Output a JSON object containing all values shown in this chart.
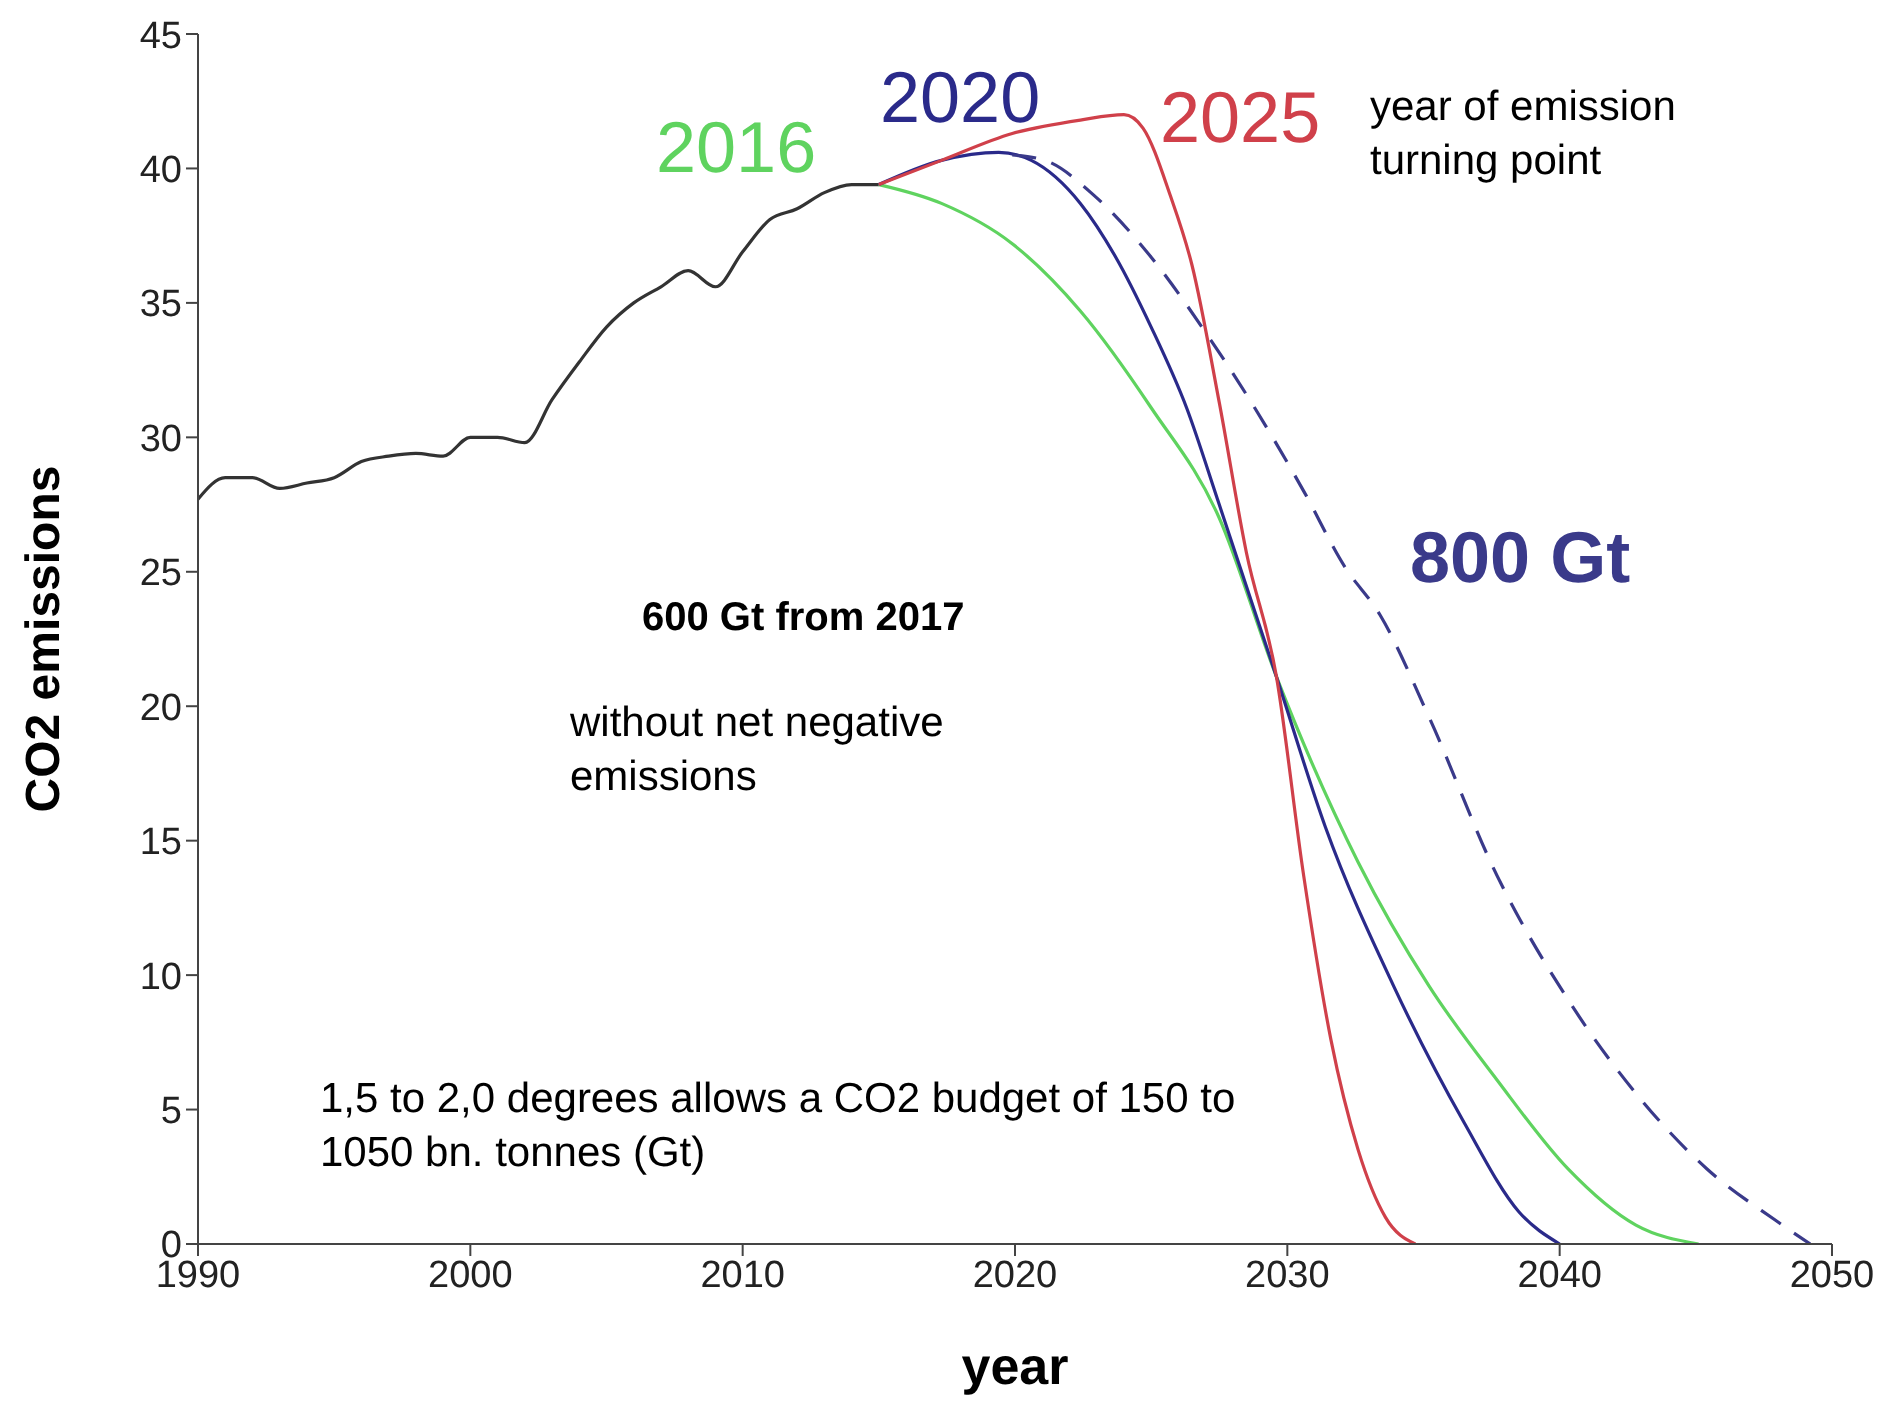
{
  "chart_data": {
    "type": "line",
    "xlabel": "year",
    "ylabel": "CO2 emissions",
    "xlim": [
      1990,
      2050
    ],
    "xticks": [
      1990,
      2000,
      2010,
      2020,
      2030,
      2040,
      2050
    ],
    "ylim": [
      0,
      45
    ],
    "yticks": [
      0,
      5,
      10,
      15,
      20,
      25,
      30,
      35,
      40,
      45
    ],
    "grid": false,
    "legend": false,
    "marker": "none",
    "series": [
      {
        "color": "#333333",
        "line_style": "solid",
        "x": [
          1990,
          1991,
          1992,
          1993,
          1994,
          1995,
          1996,
          1997,
          1998,
          1999,
          2000,
          2001,
          2002,
          2003,
          2004,
          2005,
          2006,
          2007,
          2008,
          2009,
          2010,
          2011,
          2012,
          2013,
          2014,
          2015
        ],
        "values": [
          27.7,
          28.5,
          28.5,
          28.1,
          28.3,
          28.5,
          29.1,
          29.3,
          29.4,
          29.3,
          30.0,
          30.0,
          29.8,
          31.4,
          32.8,
          34.1,
          35.0,
          35.6,
          36.2,
          35.6,
          36.9,
          38.1,
          38.5,
          39.1,
          39.4,
          39.4
        ]
      },
      {
        "name": "2016",
        "color": "#5fd35f",
        "line_style": "solid",
        "x": [
          2015,
          2017.3,
          2019.9,
          2022.4,
          2025,
          2027.5,
          2029.6,
          2032.6,
          2035.2,
          2037.7,
          2040.3,
          2042.8,
          2045.1
        ],
        "values": [
          39.4,
          38.7,
          37.2,
          34.7,
          31.1,
          27.0,
          21.1,
          14.2,
          9.6,
          6.1,
          2.8,
          0.7,
          0
        ]
      },
      {
        "name": "2020",
        "color": "#2a2a8a",
        "line_style": "solid",
        "x": [
          2015,
          2017.3,
          2019.4,
          2020.6,
          2022.4,
          2023.7,
          2025,
          2026.3,
          2027.5,
          2029.6,
          2031.4,
          2033.9,
          2036.5,
          2038.5,
          2040
        ],
        "values": [
          39.4,
          40.3,
          40.6,
          40.3,
          38.7,
          36.7,
          34.1,
          31.1,
          27.5,
          21.1,
          15.5,
          9.6,
          4.5,
          1.2,
          0
        ]
      },
      {
        "name": "2025",
        "color": "#d0404a",
        "line_style": "solid",
        "x": [
          2015,
          2017.3,
          2019.9,
          2022.4,
          2024,
          2024.7,
          2025.7,
          2026.5,
          2027.5,
          2028.5,
          2029.6,
          2030.6,
          2031.6,
          2032.6,
          2033.6,
          2034.7
        ],
        "values": [
          39.4,
          40.3,
          41.3,
          41.8,
          42.0,
          41.5,
          39.0,
          36.4,
          31.3,
          25.7,
          21.1,
          13.7,
          7.6,
          3.5,
          1.0,
          0
        ]
      },
      {
        "name": "800 Gt",
        "color": "#3a3a8a",
        "line_style": "dashed",
        "x": [
          2019.9,
          2021.1,
          2022.9,
          2025,
          2027,
          2028.8,
          2030.6,
          2032.1,
          2033.4,
          2035.2,
          2037.7,
          2040.3,
          2042.8,
          2045.4,
          2047.9,
          2049.2
        ],
        "values": [
          40.5,
          40.3,
          39.0,
          36.7,
          33.9,
          31.1,
          28.0,
          25.2,
          23.4,
          19.6,
          13.7,
          9.1,
          5.6,
          2.8,
          0.9,
          0
        ]
      }
    ],
    "annotations": [
      "year of emission turning point",
      "600 Gt from 2017",
      "without net negative emissions",
      "1,5 to 2,0 degrees allows a CO2 budget of 150 to 1050 bn. tonnes (Gt)"
    ]
  }
}
